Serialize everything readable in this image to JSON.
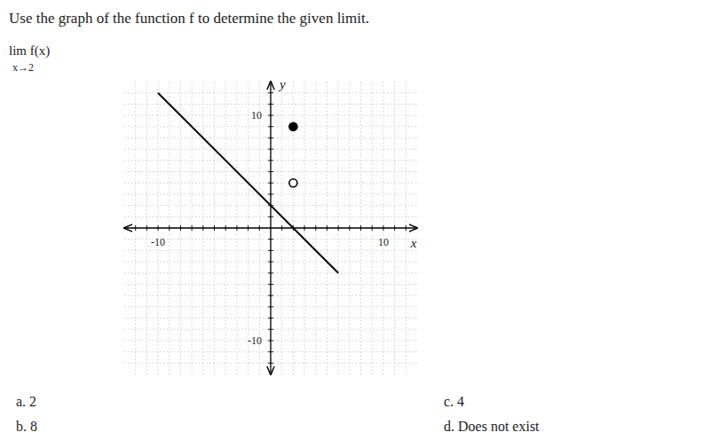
{
  "chart_data": {
    "type": "line",
    "title": "Use the graph of the function f to determine the given limit.",
    "xlabel": "x",
    "ylabel": "y",
    "xlim": [
      -13,
      13
    ],
    "ylim": [
      -13,
      13
    ],
    "xticks": [
      {
        "value": -12,
        "label": null
      },
      {
        "value": -11,
        "label": null
      },
      -10,
      {
        "value": -9,
        "label": null
      },
      {
        "value": -8,
        "label": null
      },
      {
        "value": -7,
        "label": null
      },
      {
        "value": -6,
        "label": null
      },
      {
        "value": -5,
        "label": null
      },
      {
        "value": -4,
        "label": null
      },
      {
        "value": -3,
        "label": null
      },
      {
        "value": -2,
        "label": null
      },
      {
        "value": -1,
        "label": null
      },
      {
        "value": 0,
        "label": null
      },
      {
        "value": 1,
        "label": null
      },
      {
        "value": 2,
        "label": null
      },
      {
        "value": 3,
        "label": null
      },
      {
        "value": 4,
        "label": null
      },
      {
        "value": 5,
        "label": null
      },
      {
        "value": 6,
        "label": null
      },
      {
        "value": 7,
        "label": null
      },
      {
        "value": 8,
        "label": null
      },
      {
        "value": 9,
        "label": null
      },
      10,
      {
        "value": 11,
        "label": null
      },
      {
        "value": 12,
        "label": null
      }
    ],
    "yticks": [
      {
        "value": -12,
        "label": null
      },
      {
        "value": -11,
        "label": null
      },
      -10,
      {
        "value": -9,
        "label": null
      },
      {
        "value": -8,
        "label": null
      },
      {
        "value": -7,
        "label": null
      },
      {
        "value": -6,
        "label": null
      },
      {
        "value": -5,
        "label": null
      },
      {
        "value": -4,
        "label": null
      },
      {
        "value": -3,
        "label": null
      },
      {
        "value": -2,
        "label": null
      },
      {
        "value": -1,
        "label": null
      },
      {
        "value": 0,
        "label": null
      },
      {
        "value": 1,
        "label": null
      },
      {
        "value": 2,
        "label": null
      },
      {
        "value": 3,
        "label": null
      },
      {
        "value": 4,
        "label": null
      },
      {
        "value": 5,
        "label": null
      },
      {
        "value": 6,
        "label": null
      },
      {
        "value": 7,
        "label": null
      },
      {
        "value": 8,
        "label": null
      },
      {
        "value": 9,
        "label": null
      },
      10,
      {
        "value": 11,
        "label": null
      },
      {
        "value": 12,
        "label": null
      }
    ],
    "grid": true,
    "series": [
      {
        "type": "line",
        "x": [
          -10,
          6
        ],
        "values": [
          12,
          -4
        ],
        "color": "black"
      },
      {
        "type": "scatter",
        "marker": "open",
        "x": [
          2
        ],
        "values": [
          4
        ]
      },
      {
        "type": "scatter",
        "marker": "filled",
        "x": [
          2
        ],
        "values": [
          9
        ],
        "color": "black"
      }
    ],
    "annotations": [
      "lim f(x)",
      "x→2",
      "a.  2",
      "b.  8",
      "c.  4",
      "d.  Does not exist"
    ]
  }
}
